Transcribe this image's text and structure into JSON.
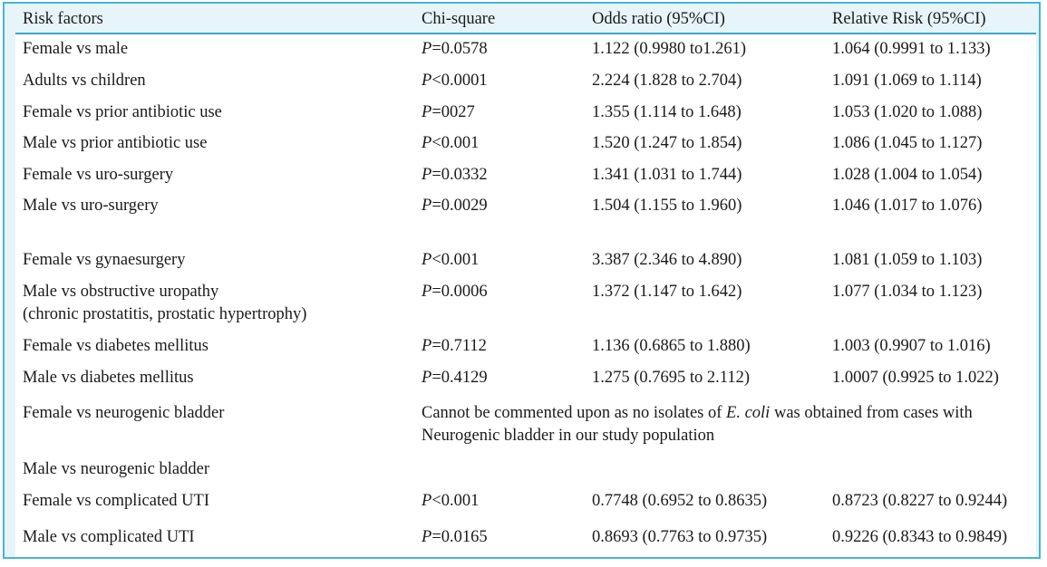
{
  "headers": [
    "Risk factors",
    "Chi-square",
    "Odds ratio (95%CI)",
    "Relative Risk (95%CI)"
  ],
  "rows": [
    {
      "factor": "Female vs male",
      "p_sym": "P",
      "p_rest": "=0.0578",
      "odds": "1.122 (0.9980 to1.261)",
      "rr": "1.064 (0.9991 to 1.133)"
    },
    {
      "factor": "Adults vs children",
      "p_sym": "P",
      "p_rest": "<0.0001",
      "odds": "2.224 (1.828 to 2.704)",
      "rr": "1.091 (1.069 to 1.114)"
    },
    {
      "factor": "Female vs prior antibiotic use",
      "p_sym": "P",
      "p_rest": "=0027",
      "odds": "1.355 (1.114 to 1.648)",
      "rr": "1.053 (1.020 to 1.088)"
    },
    {
      "factor": "Male vs prior antibiotic use",
      "p_sym": "P",
      "p_rest": "<0.001",
      "odds": "1.520 (1.247 to 1.854)",
      "rr": "1.086 (1.045 to 1.127)"
    },
    {
      "factor": "Female vs uro-surgery",
      "p_sym": "P",
      "p_rest": "=0.0332",
      "odds": "1.341 (1.031 to 1.744)",
      "rr": "1.028 (1.004 to 1.054)"
    },
    {
      "factor": "Male vs uro-surgery",
      "p_sym": "P",
      "p_rest": "=0.0029",
      "odds": "1.504 (1.155 to 1.960)",
      "rr": "1.046 (1.017 to 1.076)"
    },
    {
      "factor": "Female vs gynaesurgery",
      "p_sym": "P",
      "p_rest": "<0.001",
      "odds": "3.387 (2.346 to 4.890)",
      "rr": "1.081 (1.059 to 1.103)"
    },
    {
      "factor": "Male vs obstructive uropathy",
      "factor2": "(chronic prostatitis, prostatic hypertrophy)",
      "p_sym": "P",
      "p_rest": "=0.0006",
      "odds": "1.372 (1.147 to 1.642)",
      "rr": "1.077 (1.034 to 1.123)"
    },
    {
      "factor": "Female vs diabetes mellitus",
      "p_sym": "P",
      "p_rest": "=0.7112",
      "odds": "1.136 (0.6865 to 1.880)",
      "rr": "1.003 (0.9907 to 1.016)"
    },
    {
      "factor": "Male vs diabetes mellitus",
      "p_sym": "P",
      "p_rest": "=0.4129",
      "odds": "1.275 (0.7695 to 2.112)",
      "rr": "1.0007 (0.9925 to 1.022)"
    },
    {
      "factor": "Female vs neurogenic bladder"
    },
    {
      "factor": "Male vs neurogenic bladder"
    },
    {
      "factor": "Female vs complicated UTI",
      "p_sym": "P",
      "p_rest": "<0.001",
      "odds": "0.7748 (0.6952 to 0.8635)",
      "rr": "0.8723 (0.8227 to 0.9244)"
    },
    {
      "factor": "Male vs complicated UTI",
      "p_sym": "P",
      "p_rest": "=0.0165",
      "odds": "0.8693 (0.7763 to 0.9735)",
      "rr": "0.9226 (0.8343 to 0.9849)"
    }
  ],
  "note": {
    "before": "Cannot be commented upon as no isolates of ",
    "italic": "E. coli",
    "after": " was obtained from cases with Neurogenic bladder in our study population"
  }
}
